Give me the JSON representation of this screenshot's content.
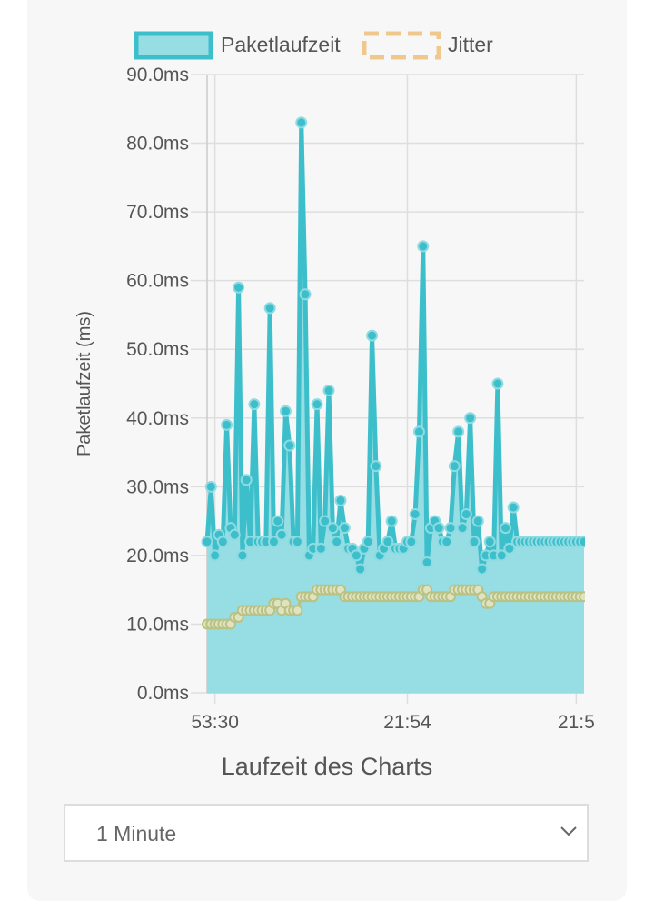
{
  "colors": {
    "primary": "#3dbfcb",
    "primary_fill": "#96dde4",
    "secondary": "#b9c283",
    "legend_jitter": "#f0c88c",
    "grid": "#dedede",
    "text": "#555555"
  },
  "chart_data": {
    "type": "line",
    "legend_position": "top-center",
    "grid": true,
    "ylabel": "Paketlaufzeit (ms)",
    "xlabel": "Laufzeit des Charts",
    "ylim": [
      0,
      90
    ],
    "yticks": [
      "0.0ms",
      "10.0ms",
      "20.0ms",
      "30.0ms",
      "40.0ms",
      "50.0ms",
      "60.0ms",
      "70.0ms",
      "80.0ms",
      "90.0ms"
    ],
    "xticks": [
      {
        "label": "53:30",
        "t": 2
      },
      {
        "label": "21:54",
        "t": 51
      },
      {
        "label": "21:5",
        "t": 94
      }
    ],
    "series": [
      {
        "name": "Paketlaufzeit",
        "fill": true,
        "t": [
          0,
          1,
          2,
          3,
          4,
          5,
          6,
          7,
          8,
          9,
          10,
          11,
          12,
          13,
          14,
          15,
          16,
          17,
          18,
          19,
          20,
          21,
          22,
          23,
          24,
          25,
          26,
          27,
          28,
          29,
          30,
          31,
          32,
          33,
          34,
          35,
          36,
          37,
          38,
          39,
          40,
          41,
          42,
          43,
          44,
          45,
          46,
          47,
          48,
          49,
          50,
          51,
          52,
          53,
          54,
          55,
          56,
          57,
          58,
          59,
          60,
          61,
          62,
          63,
          64,
          65,
          66,
          67,
          68,
          69,
          70,
          71,
          72,
          73,
          74,
          75,
          76,
          77,
          78,
          79,
          80,
          81,
          82,
          83,
          84,
          85,
          86,
          87,
          88,
          89,
          90,
          91,
          92,
          93,
          94,
          95,
          96
        ],
        "values": [
          22,
          30,
          20,
          23,
          22,
          39,
          24,
          23,
          59,
          20,
          31,
          22,
          42,
          22,
          22,
          22,
          56,
          22,
          25,
          23,
          41,
          36,
          22,
          22,
          83,
          58,
          20,
          21,
          42,
          21,
          25,
          44,
          24,
          22,
          28,
          24,
          21,
          21,
          20,
          18,
          21,
          22,
          52,
          33,
          20,
          21,
          22,
          25,
          21,
          21,
          21,
          22,
          22,
          26,
          38,
          65,
          19,
          24,
          25,
          24,
          22,
          22,
          24,
          33,
          38,
          24,
          26,
          40,
          22,
          25,
          18,
          20,
          22,
          20,
          45,
          20,
          24,
          21,
          27,
          22,
          22,
          22,
          22,
          22,
          22,
          22,
          22,
          22,
          22,
          22,
          22,
          22,
          22,
          22,
          22,
          22,
          22
        ]
      },
      {
        "name": "Jitter",
        "fill": false,
        "t": [
          0,
          1,
          2,
          3,
          4,
          5,
          6,
          7,
          8,
          9,
          10,
          11,
          12,
          13,
          14,
          15,
          16,
          17,
          18,
          19,
          20,
          21,
          22,
          23,
          24,
          25,
          26,
          27,
          28,
          29,
          30,
          31,
          32,
          33,
          34,
          35,
          36,
          37,
          38,
          39,
          40,
          41,
          42,
          43,
          44,
          45,
          46,
          47,
          48,
          49,
          50,
          51,
          52,
          53,
          54,
          55,
          56,
          57,
          58,
          59,
          60,
          61,
          62,
          63,
          64,
          65,
          66,
          67,
          68,
          69,
          70,
          71,
          72,
          73,
          74,
          75,
          76,
          77,
          78,
          79,
          80,
          81,
          82,
          83,
          84,
          85,
          86,
          87,
          88,
          89,
          90,
          91,
          92,
          93,
          94,
          95,
          96
        ],
        "values": [
          10,
          10,
          10,
          10,
          10,
          10,
          10,
          11,
          11,
          12,
          12,
          12,
          12,
          12,
          12,
          12,
          12,
          13,
          13,
          12,
          13,
          12,
          12,
          12,
          14,
          14,
          14,
          14,
          15,
          15,
          15,
          15,
          15,
          15,
          15,
          14,
          14,
          14,
          14,
          14,
          14,
          14,
          14,
          14,
          14,
          14,
          14,
          14,
          14,
          14,
          14,
          14,
          14,
          14,
          14,
          15,
          15,
          14,
          14,
          14,
          14,
          14,
          14,
          15,
          15,
          15,
          15,
          15,
          15,
          15,
          14,
          13,
          13,
          14,
          14,
          14,
          14,
          14,
          14,
          14,
          14,
          14,
          14,
          14,
          14,
          14,
          14,
          14,
          14,
          14,
          14,
          14,
          14,
          14,
          14,
          14,
          14
        ]
      }
    ]
  },
  "select": {
    "value": "1 Minute"
  }
}
